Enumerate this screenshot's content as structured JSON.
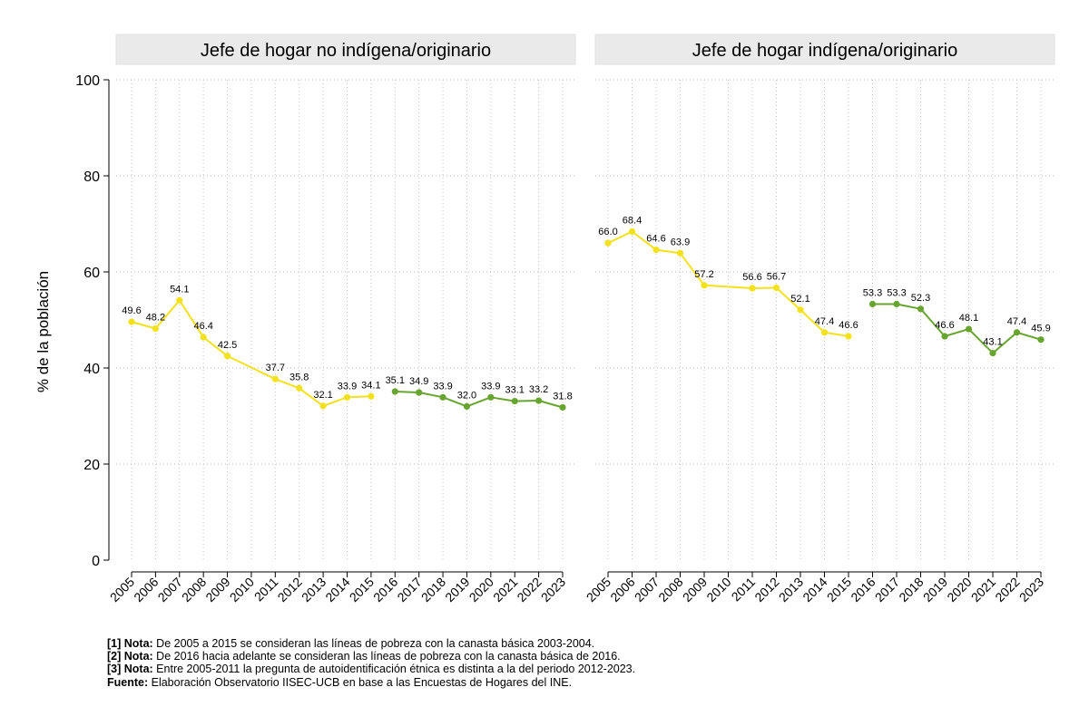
{
  "chart_data": {
    "type": "line",
    "ylabel": "% de la población",
    "ylim": [
      0,
      100
    ],
    "yticks": [
      0,
      20,
      40,
      60,
      80,
      100
    ],
    "years": [
      "2005",
      "2006",
      "2007",
      "2008",
      "2009",
      "2010",
      "2011",
      "2012",
      "2013",
      "2014",
      "2015",
      "2016",
      "2017",
      "2018",
      "2019",
      "2020",
      "2021",
      "2022",
      "2023"
    ],
    "colors": {
      "series_2003": "#f3e11b",
      "series_2016": "#67a530",
      "panel_header": "#eaeaea"
    },
    "panels": [
      {
        "title": "Jefe de hogar no indígena/originario",
        "series": [
          {
            "name": "Canasta básica 2003-2004",
            "color_key": "series_2003",
            "points": [
              {
                "year": 2005,
                "value": 49.6,
                "label": "49.6"
              },
              {
                "year": 2006,
                "value": 48.2,
                "label": "48.2"
              },
              {
                "year": 2007,
                "value": 54.1,
                "label": "54.1"
              },
              {
                "year": 2008,
                "value": 46.4,
                "label": "46.4"
              },
              {
                "year": 2009,
                "value": 42.5,
                "label": "42.5"
              },
              {
                "year": 2011,
                "value": 37.7,
                "label": "37.7"
              },
              {
                "year": 2012,
                "value": 35.8,
                "label": "35.8"
              },
              {
                "year": 2013,
                "value": 32.1,
                "label": "32.1"
              },
              {
                "year": 2014,
                "value": 33.9,
                "label": "33.9"
              },
              {
                "year": 2015,
                "value": 34.1,
                "label": "34.1"
              }
            ]
          },
          {
            "name": "Canasta básica 2016",
            "color_key": "series_2016",
            "points": [
              {
                "year": 2016,
                "value": 35.1,
                "label": "35.1"
              },
              {
                "year": 2017,
                "value": 34.9,
                "label": "34.9"
              },
              {
                "year": 2018,
                "value": 33.9,
                "label": "33.9"
              },
              {
                "year": 2019,
                "value": 32.0,
                "label": "32.0"
              },
              {
                "year": 2020,
                "value": 33.9,
                "label": "33.9"
              },
              {
                "year": 2021,
                "value": 33.1,
                "label": "33.1"
              },
              {
                "year": 2022,
                "value": 33.2,
                "label": "33.2"
              },
              {
                "year": 2023,
                "value": 31.8,
                "label": "31.8"
              }
            ]
          }
        ]
      },
      {
        "title": "Jefe de hogar indígena/originario",
        "series": [
          {
            "name": "Canasta básica 2003-2004",
            "color_key": "series_2003",
            "points": [
              {
                "year": 2005,
                "value": 66.0,
                "label": "66.0"
              },
              {
                "year": 2006,
                "value": 68.4,
                "label": "68.4"
              },
              {
                "year": 2007,
                "value": 64.6,
                "label": "64.6"
              },
              {
                "year": 2008,
                "value": 63.9,
                "label": "63.9"
              },
              {
                "year": 2009,
                "value": 57.2,
                "label": "57.2"
              },
              {
                "year": 2011,
                "value": 56.6,
                "label": "56.6"
              },
              {
                "year": 2012,
                "value": 56.7,
                "label": "56.7"
              },
              {
                "year": 2013,
                "value": 52.1,
                "label": "52.1"
              },
              {
                "year": 2014,
                "value": 47.4,
                "label": "47.4"
              },
              {
                "year": 2015,
                "value": 46.6,
                "label": "46.6"
              }
            ]
          },
          {
            "name": "Canasta básica 2016",
            "color_key": "series_2016",
            "points": [
              {
                "year": 2016,
                "value": 53.3,
                "label": "53.3"
              },
              {
                "year": 2017,
                "value": 53.3,
                "label": "53.3"
              },
              {
                "year": 2018,
                "value": 52.3,
                "label": "52.3"
              },
              {
                "year": 2019,
                "value": 46.6,
                "label": "46.6"
              },
              {
                "year": 2020,
                "value": 48.1,
                "label": "48.1"
              },
              {
                "year": 2021,
                "value": 43.1,
                "label": "43.1"
              },
              {
                "year": 2022,
                "value": 47.4,
                "label": "47.4"
              },
              {
                "year": 2023,
                "value": 45.9,
                "label": "45.9"
              }
            ]
          }
        ]
      }
    ]
  },
  "notes": [
    {
      "label": "[1] Nota:",
      "text": " De 2005 a 2015 se consideran las líneas de pobreza con la canasta básica 2003-2004."
    },
    {
      "label": "[2] Nota:",
      "text": " De 2016 hacia adelante se consideran las líneas de pobreza con la canasta básica de 2016."
    },
    {
      "label": "[3] Nota:",
      "text": " Entre 2005-2011 la pregunta de autoidentificación étnica es distinta a la del periodo 2012-2023."
    },
    {
      "label": "Fuente:",
      "text": " Elaboración Observatorio IISEC-UCB en base a las Encuestas de Hogares del INE."
    }
  ]
}
